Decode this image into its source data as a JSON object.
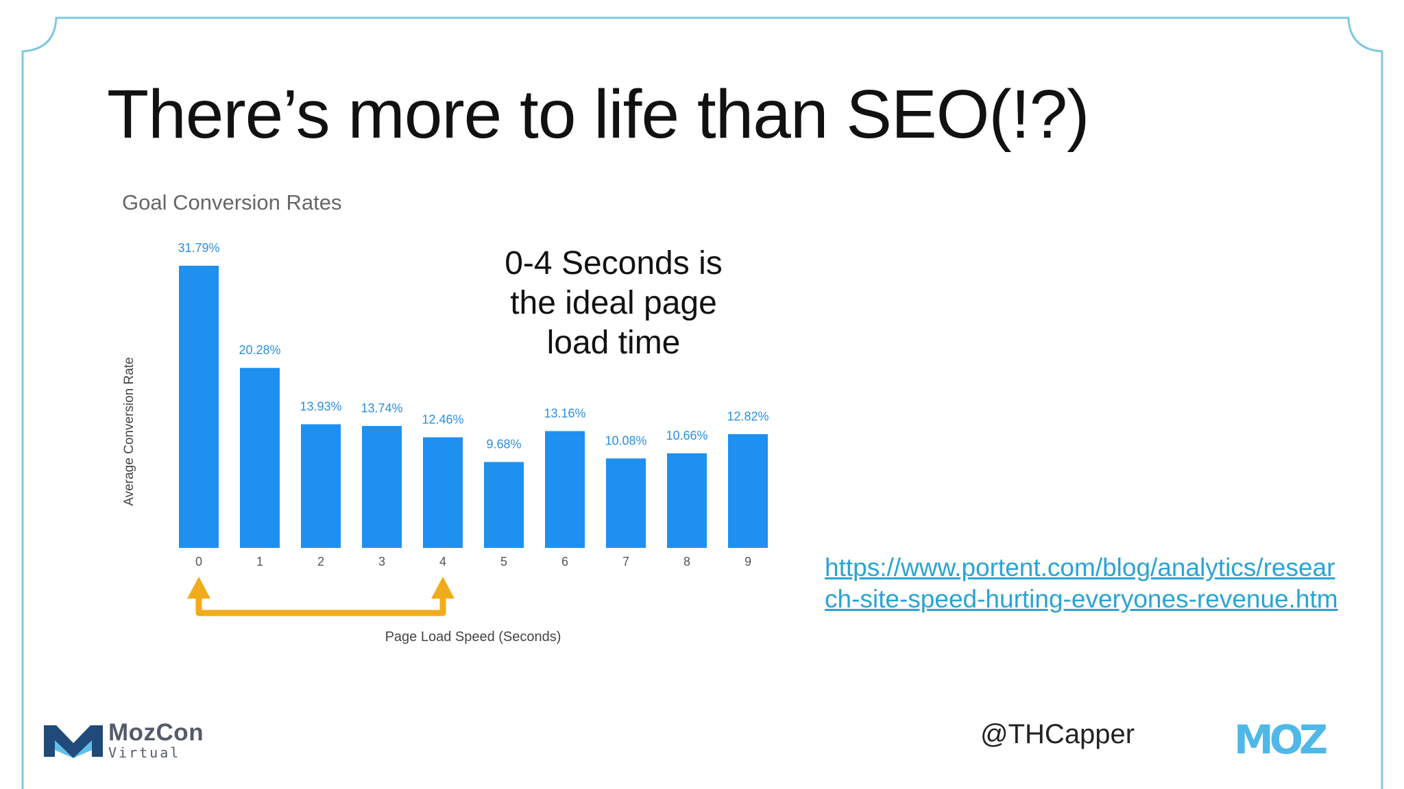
{
  "slide": {
    "title": "There’s more to life than SEO(!?)",
    "callout": "0-4 Seconds is the ideal page load time",
    "source_link": "https://www.portent.com/blog/analytics/research-site-speed-hurting-everyones-revenue.htm",
    "handle": "@THCapper",
    "event_logo": {
      "name": "MozCon",
      "subtitle": "Virtual"
    },
    "brand_logo": "MOZ",
    "frame_color": "#7ec9e3"
  },
  "chart_data": {
    "type": "bar",
    "title": "Goal Conversion Rates",
    "xlabel": "Page Load Speed (Seconds)",
    "ylabel": "Average Conversion Rate",
    "categories": [
      "0",
      "1",
      "2",
      "3",
      "4",
      "5",
      "6",
      "7",
      "8",
      "9"
    ],
    "values": [
      31.79,
      20.28,
      13.93,
      13.74,
      12.46,
      9.68,
      13.16,
      10.08,
      10.66,
      12.82
    ],
    "data_labels": [
      "31.79%",
      "20.28%",
      "13.93%",
      "13.74%",
      "12.46%",
      "9.68%",
      "13.16%",
      "10.08%",
      "10.66%",
      "12.82%"
    ],
    "ylim": [
      0,
      31.79
    ],
    "grid": false,
    "bar_color": "#1e90f0",
    "label_color": "#2a8fe0",
    "annotation": {
      "type": "double-arrow",
      "from": "0",
      "to": "4",
      "color": "#f0ac1a"
    }
  }
}
